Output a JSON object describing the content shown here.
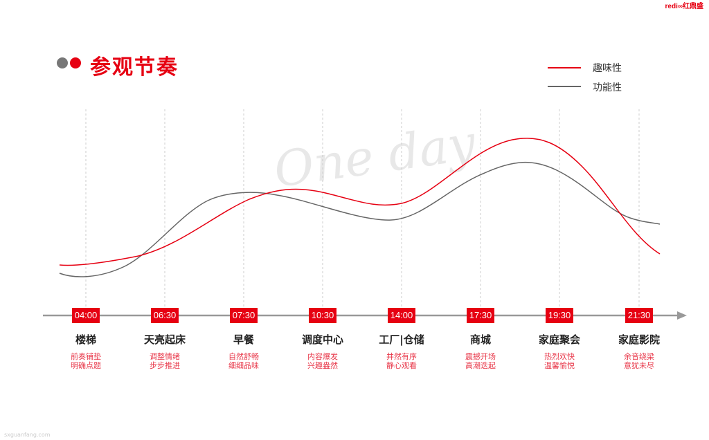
{
  "header": {
    "title": "参观节奏",
    "logo_text": "redi∞红鼎盛"
  },
  "watermark_script": "One day",
  "footer_watermark": "sxguanfang.com",
  "legend": [
    {
      "label": "趣味性",
      "color": "#e60012"
    },
    {
      "label": "功能性",
      "color": "#666666"
    }
  ],
  "colors": {
    "accent": "#e60012",
    "secondary": "#777777",
    "axis": "#999999"
  },
  "stops": [
    {
      "time": "04:00",
      "title": "楼梯",
      "desc1": "前奏铺垫",
      "desc2": "明确点题"
    },
    {
      "time": "06:30",
      "title": "天亮起床",
      "desc1": "调整情绪",
      "desc2": "步步推进"
    },
    {
      "time": "07:30",
      "title": "早餐",
      "desc1": "自然舒畅",
      "desc2": "细细品味"
    },
    {
      "time": "10:30",
      "title": "调度中心",
      "desc1": "内容爆发",
      "desc2": "兴趣盎然"
    },
    {
      "time": "14:00",
      "title": "工厂|仓储",
      "desc1": "井然有序",
      "desc2": "静心观看"
    },
    {
      "time": "17:30",
      "title": "商城",
      "desc1": "震撼开场",
      "desc2": "高潮迭起"
    },
    {
      "time": "19:30",
      "title": "家庭聚会",
      "desc1": "热烈欢快",
      "desc2": "温馨愉悦"
    },
    {
      "time": "21:30",
      "title": "家庭影院",
      "desc1": "余音绕梁",
      "desc2": "意犹未尽"
    }
  ]
}
